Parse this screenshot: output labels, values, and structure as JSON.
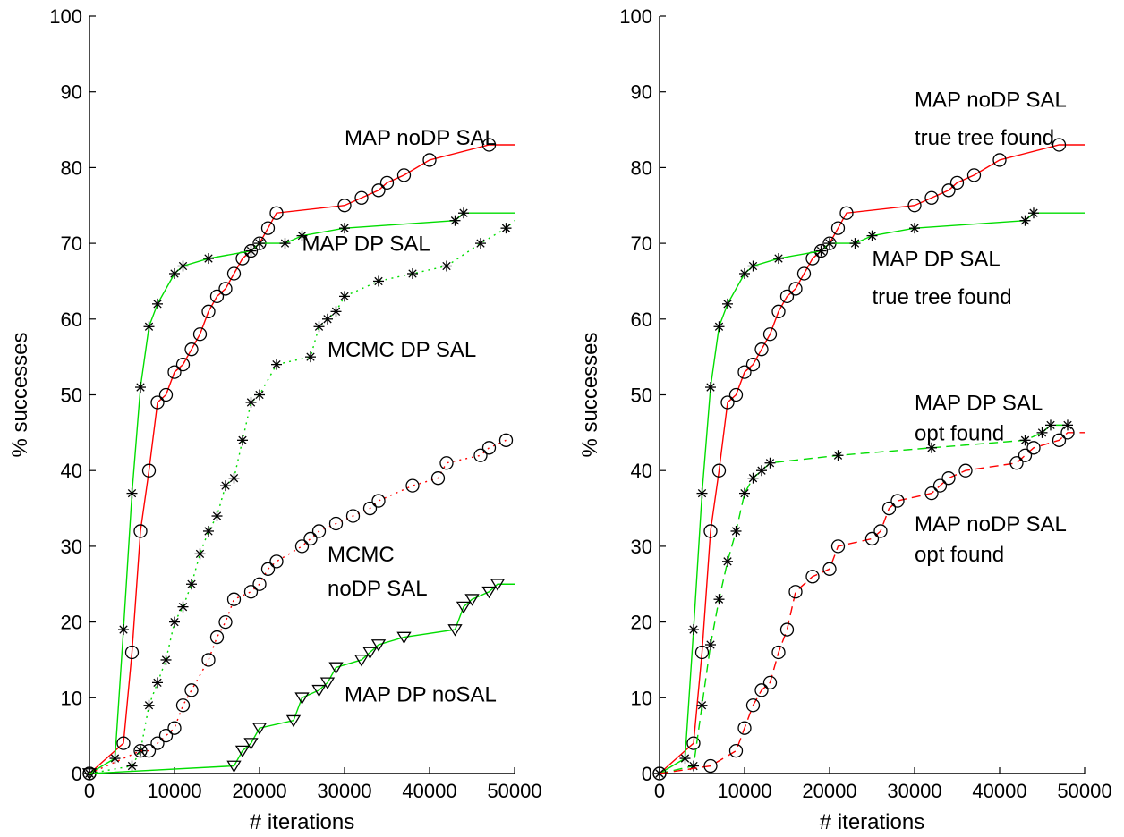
{
  "chart_data": [
    {
      "type": "line",
      "xlabel": "# iterations",
      "ylabel": "% successes",
      "xlim": [
        0,
        50000
      ],
      "ylim": [
        0,
        100
      ],
      "xticks": [
        0,
        10000,
        20000,
        30000,
        40000,
        50000
      ],
      "yticks": [
        0,
        10,
        20,
        30,
        40,
        50,
        60,
        70,
        80,
        90,
        100
      ],
      "grid": false,
      "series": [
        {
          "name": "MAP noDP SAL",
          "color": "#ff0000",
          "linestyle": "solid",
          "marker": "circle",
          "x": [
            0,
            4000,
            5000,
            6000,
            7000,
            8000,
            9000,
            10000,
            11000,
            12000,
            13000,
            14000,
            15000,
            16000,
            17000,
            18000,
            19000,
            20000,
            21000,
            22000,
            30000,
            32000,
            34000,
            35000,
            37000,
            40000,
            47000,
            50000
          ],
          "y": [
            0,
            4,
            16,
            32,
            40,
            49,
            50,
            53,
            54,
            56,
            58,
            61,
            63,
            64,
            66,
            68,
            69,
            70,
            72,
            74,
            75,
            76,
            77,
            78,
            79,
            81,
            83,
            83
          ]
        },
        {
          "name": "MAP DP SAL",
          "color": "#00dd00",
          "linestyle": "solid",
          "marker": "asterisk",
          "x": [
            0,
            3000,
            4000,
            5000,
            6000,
            7000,
            8000,
            10000,
            11000,
            14000,
            19000,
            20000,
            23000,
            25000,
            30000,
            43000,
            44000,
            50000
          ],
          "y": [
            0,
            2,
            19,
            37,
            51,
            59,
            62,
            66,
            67,
            68,
            69,
            70,
            70,
            71,
            72,
            73,
            74,
            74
          ]
        },
        {
          "name": "MCMC DP SAL",
          "color": "#00dd00",
          "linestyle": "dotted",
          "marker": "asterisk",
          "x": [
            0,
            5000,
            6000,
            7000,
            8000,
            9000,
            10000,
            11000,
            12000,
            13000,
            14000,
            15000,
            16000,
            17000,
            18000,
            19000,
            20000,
            22000,
            26000,
            27000,
            28000,
            29000,
            30000,
            34000,
            38000,
            42000,
            46000,
            49000,
            50000
          ],
          "y": [
            0,
            1,
            3,
            9,
            12,
            15,
            20,
            22,
            25,
            29,
            32,
            34,
            38,
            39,
            44,
            49,
            50,
            54,
            55,
            59,
            60,
            61,
            63,
            65,
            66,
            67,
            70,
            72,
            73
          ]
        },
        {
          "name": "MCMC noDP SAL",
          "color": "#ff0000",
          "linestyle": "dotted",
          "marker": "circle",
          "x": [
            0,
            6000,
            7000,
            8000,
            9000,
            10000,
            11000,
            12000,
            14000,
            15000,
            16000,
            17000,
            19000,
            20000,
            21000,
            22000,
            25000,
            26000,
            27000,
            29000,
            31000,
            33000,
            34000,
            38000,
            41000,
            42000,
            46000,
            47000,
            49000
          ],
          "y": [
            0,
            3,
            3,
            4,
            5,
            6,
            9,
            11,
            15,
            18,
            20,
            23,
            24,
            25,
            27,
            28,
            30,
            31,
            32,
            33,
            34,
            35,
            36,
            38,
            39,
            41,
            42,
            43,
            44
          ]
        },
        {
          "name": "MAP DP noSAL",
          "color": "#00dd00",
          "linestyle": "solid",
          "marker": "triangle-down",
          "x": [
            0,
            17000,
            18000,
            19000,
            20000,
            24000,
            25000,
            27000,
            28000,
            29000,
            32000,
            33000,
            34000,
            37000,
            43000,
            44000,
            45000,
            47000,
            48000,
            50000
          ],
          "y": [
            0,
            1,
            3,
            4,
            6,
            7,
            10,
            11,
            12,
            14,
            15,
            16,
            17,
            18,
            19,
            22,
            23,
            24,
            25,
            25
          ]
        }
      ],
      "annotations": [
        {
          "text": "MAP noDP SAL",
          "at": [
            30000,
            83
          ]
        },
        {
          "text": "MAP DP SAL",
          "at": [
            25000,
            69
          ]
        },
        {
          "text": "MCMC DP SAL",
          "at": [
            28000,
            55
          ]
        },
        {
          "text": "MCMC",
          "at": [
            28000,
            28
          ]
        },
        {
          "text": "noDP SAL",
          "at": [
            28000,
            23.5
          ]
        },
        {
          "text": "MAP DP noSAL",
          "at": [
            30000,
            9.5
          ]
        }
      ]
    },
    {
      "type": "line",
      "xlabel": "# iterations",
      "ylabel": "% successes",
      "xlim": [
        0,
        50000
      ],
      "ylim": [
        0,
        100
      ],
      "xticks": [
        0,
        10000,
        20000,
        30000,
        40000,
        50000
      ],
      "yticks": [
        0,
        10,
        20,
        30,
        40,
        50,
        60,
        70,
        80,
        90,
        100
      ],
      "grid": false,
      "series": [
        {
          "name": "MAP noDP SAL true tree found",
          "color": "#ff0000",
          "linestyle": "solid",
          "marker": "circle",
          "x": [
            0,
            4000,
            5000,
            6000,
            7000,
            8000,
            9000,
            10000,
            11000,
            12000,
            13000,
            14000,
            15000,
            16000,
            17000,
            18000,
            19000,
            20000,
            21000,
            22000,
            30000,
            32000,
            34000,
            35000,
            37000,
            40000,
            47000,
            50000
          ],
          "y": [
            0,
            4,
            16,
            32,
            40,
            49,
            50,
            53,
            54,
            56,
            58,
            61,
            63,
            64,
            66,
            68,
            69,
            70,
            72,
            74,
            75,
            76,
            77,
            78,
            79,
            81,
            83,
            83
          ]
        },
        {
          "name": "MAP DP SAL true tree found",
          "color": "#00dd00",
          "linestyle": "solid",
          "marker": "asterisk",
          "x": [
            0,
            3000,
            4000,
            5000,
            6000,
            7000,
            8000,
            10000,
            11000,
            14000,
            19000,
            20000,
            23000,
            25000,
            30000,
            43000,
            44000,
            50000
          ],
          "y": [
            0,
            2,
            19,
            37,
            51,
            59,
            62,
            66,
            67,
            68,
            69,
            70,
            70,
            71,
            72,
            73,
            74,
            74
          ]
        },
        {
          "name": "MAP DP SAL opt found",
          "color": "#00dd00",
          "linestyle": "dashed",
          "marker": "asterisk",
          "x": [
            0,
            4000,
            5000,
            6000,
            7000,
            8000,
            9000,
            10000,
            11000,
            12000,
            13000,
            21000,
            32000,
            43000,
            45000,
            46000,
            48000
          ],
          "y": [
            0,
            1,
            9,
            17,
            23,
            28,
            32,
            37,
            39,
            40,
            41,
            42,
            43,
            44,
            45,
            46,
            46
          ]
        },
        {
          "name": "MAP noDP SAL opt found",
          "color": "#ff0000",
          "linestyle": "dashed",
          "marker": "circle",
          "x": [
            0,
            6000,
            9000,
            10000,
            11000,
            12000,
            13000,
            14000,
            15000,
            16000,
            18000,
            20000,
            21000,
            25000,
            26000,
            27000,
            28000,
            32000,
            33000,
            34000,
            36000,
            42000,
            43000,
            44000,
            47000,
            48000,
            50000
          ],
          "y": [
            0,
            1,
            3,
            6,
            9,
            11,
            12,
            16,
            19,
            24,
            26,
            27,
            30,
            31,
            32,
            35,
            36,
            37,
            38,
            39,
            40,
            41,
            42,
            43,
            44,
            45,
            45
          ]
        }
      ],
      "annotations": [
        {
          "text": "MAP noDP SAL",
          "at": [
            30000,
            88
          ]
        },
        {
          "text": "true tree found",
          "at": [
            30000,
            83
          ]
        },
        {
          "text": "MAP DP SAL",
          "at": [
            25000,
            67
          ]
        },
        {
          "text": "true tree found",
          "at": [
            25000,
            62
          ]
        },
        {
          "text": "MAP DP SAL",
          "at": [
            30000,
            48
          ]
        },
        {
          "text": "opt found",
          "at": [
            30000,
            44
          ]
        },
        {
          "text": "MAP noDP SAL",
          "at": [
            30000,
            32
          ]
        },
        {
          "text": "opt found",
          "at": [
            30000,
            28
          ]
        }
      ]
    }
  ]
}
